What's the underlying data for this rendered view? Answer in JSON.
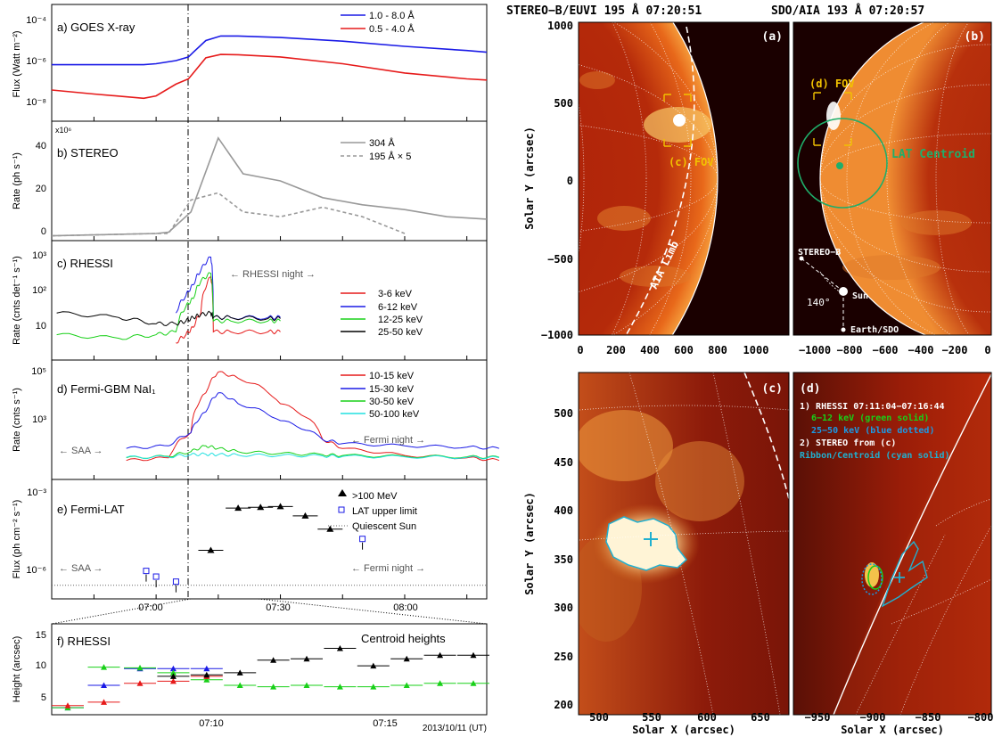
{
  "figure": {
    "footer_date": "2013/10/11 (UT)",
    "time_ticks_main": [
      "07:00",
      "07:30",
      "08:00"
    ],
    "time_ticks_f": [
      "07:10",
      "07:15"
    ]
  },
  "colors": {
    "blue": "#1a1ae6",
    "red": "#e61a1a",
    "green": "#18d018",
    "black": "#000000",
    "cyan": "#20e0e0",
    "gray": "#999999",
    "sun_cyan": "#20b0d0",
    "lat_green": "#1fae6a",
    "fov_yellow": "#f2c200"
  },
  "panels": {
    "a": {
      "label": "a) GOES X-ray",
      "ylabel": "Flux (Watt m⁻²)",
      "yticks": [
        "10⁻⁴",
        "10⁻⁶",
        "10⁻⁸"
      ],
      "legend": [
        "1.0 - 8.0 Å",
        "0.5 - 4.0 Å"
      ]
    },
    "b": {
      "label": "b) STEREO",
      "ylabel": "Rate (ph s⁻¹)",
      "multiplier": "x10⁶",
      "yticks": [
        "40",
        "20",
        "0"
      ],
      "legend": [
        "304 Å",
        "195 Å × 5"
      ]
    },
    "c": {
      "label": "c) RHESSI",
      "ylabel": "Rate (cnts det⁻¹ s⁻¹)",
      "yticks": [
        "10³",
        "10²",
        "10"
      ],
      "night_label": "← RHESSI night →",
      "legend": [
        "3-6 keV",
        "6-12 keV",
        "12-25 keV",
        "25-50 keV"
      ]
    },
    "d": {
      "label": "d) Fermi-GBM NaI₁",
      "ylabel": "Rate (cnts s⁻¹)",
      "yticks": [
        "10⁵",
        "10³"
      ],
      "saa_label": "← SAA →",
      "night_label": "← Fermi night →",
      "legend": [
        "10-15 keV",
        "15-30 keV",
        "30-50 keV",
        "50-100 keV"
      ]
    },
    "e": {
      "label": "e) Fermi-LAT",
      "ylabel": "Flux (ph cm⁻² s⁻¹)",
      "yticks": [
        "10⁻³",
        "10⁻⁶"
      ],
      "saa_label": "← SAA →",
      "night_label": "← Fermi night →",
      "legend": [
        ">100 MeV",
        "LAT upper limit",
        "Quiescent Sun"
      ]
    },
    "f": {
      "label": "f) RHESSI",
      "ylabel": "Height (arcsec)",
      "note": "Centroid heights",
      "yticks": [
        "15",
        "10",
        "5"
      ]
    }
  },
  "images": {
    "stereo_title": "STEREO−B/EUVI 195 Å 07:20:51",
    "aia_title": "SDO/AIA 193 Å 07:20:57",
    "a": {
      "tag": "(a)",
      "fov": "(c) FOV",
      "limb": "AIA Limb",
      "yticks": [
        "1000",
        "500",
        "0",
        "−500",
        "−1000"
      ],
      "xticks": [
        "0",
        "200",
        "400",
        "600",
        "800",
        "1000"
      ]
    },
    "b": {
      "tag": "(b)",
      "fov": "(d) FOV",
      "lat": "LAT Centroid",
      "stereo": "STEREO−B",
      "sun": "Sun",
      "earth": "Earth/SDO",
      "angle": "140°",
      "xticks": [
        "−1000",
        "−800",
        "−600",
        "−400",
        "−200",
        "0"
      ]
    },
    "c": {
      "tag": "(c)",
      "xlabel": "Solar X (arcsec)",
      "yticks": [
        "500",
        "450",
        "400",
        "350",
        "300",
        "250",
        "200"
      ],
      "xticks": [
        "500",
        "550",
        "600",
        "650"
      ]
    },
    "d": {
      "tag": "(d)",
      "xlabel": "Solar X (arcsec)",
      "legend": [
        "1) RHESSI 07:11:04−07:16:44",
        "6−12 keV (green solid)",
        "25−50 keV (blue dotted)",
        "2) STEREO from (c)",
        "Ribbon/Centroid (cyan solid)"
      ],
      "xticks": [
        "−950",
        "−900",
        "−850",
        "−800"
      ]
    },
    "ylabel": "Solar Y (arcsec)"
  },
  "chart_data": [
    {
      "type": "line",
      "title": "a) GOES X-ray",
      "xlabel": "",
      "ylabel": "Flux (Watt m⁻²)",
      "log_y": true,
      "ylim": [
        1e-09,
        0.001
      ],
      "x_hours": [
        6.58,
        6.75,
        6.95,
        7.0,
        7.08,
        7.13,
        7.15,
        7.2,
        7.26,
        7.33,
        7.5,
        7.75,
        8.0,
        8.25,
        8.33
      ],
      "series": [
        {
          "name": "1.0 - 8.0 Å",
          "values": [
            8e-07,
            8e-07,
            8e-07,
            9e-07,
            1.3e-06,
            2e-06,
            3.5e-06,
            1.4e-05,
            2.4e-05,
            2.4e-05,
            2e-05,
            1.3e-05,
            7e-06,
            4.3e-06,
            3.5e-06
          ]
        },
        {
          "name": "0.5 - 4.0 Å",
          "values": [
            4e-08,
            2.5e-08,
            1.5e-08,
            2e-08,
            8e-08,
            1.5e-07,
            3e-07,
            1.8e-06,
            2.7e-06,
            2.6e-06,
            2e-06,
            9e-07,
            3e-07,
            1.5e-07,
            1.3e-07
          ]
        }
      ]
    },
    {
      "type": "line",
      "title": "b) STEREO",
      "xlabel": "",
      "ylabel": "Rate (ph s⁻¹)",
      "ylim": [
        -2,
        48
      ],
      "x_hours": [
        6.58,
        7.0,
        7.05,
        7.14,
        7.25,
        7.35,
        7.5,
        7.67,
        7.83,
        8.0,
        8.17,
        8.33
      ],
      "series": [
        {
          "name": "304 Å",
          "values": [
            0,
            1,
            1.5,
            10,
            41,
            26,
            23,
            16,
            13,
            11,
            8,
            7
          ]
        },
        {
          "name": "195 Å × 5",
          "values": [
            0,
            1,
            1,
            15,
            18,
            10,
            8,
            12,
            8,
            1,
            null,
            null
          ]
        }
      ]
    },
    {
      "type": "line",
      "title": "c) RHESSI",
      "xlabel": "",
      "ylabel": "Rate (cnts det⁻¹ s⁻¹)",
      "log_y": true,
      "ylim": [
        1,
        2000
      ],
      "x_hours": [
        6.6,
        6.85,
        7.0,
        7.08,
        7.12,
        7.15,
        7.18,
        7.22,
        7.23,
        7.3,
        7.45,
        7.5
      ],
      "series": [
        {
          "name": "3-6 keV",
          "values": [
            null,
            null,
            null,
            3,
            5,
            8,
            20,
            200,
            6,
            6,
            6,
            6
          ]
        },
        {
          "name": "6-12 keV",
          "values": [
            null,
            null,
            null,
            20,
            60,
            120,
            300,
            700,
            15,
            15,
            15,
            15
          ]
        },
        {
          "name": "12-25 keV",
          "values": [
            5,
            4,
            5,
            6,
            30,
            50,
            150,
            250,
            12,
            12,
            12,
            12
          ]
        },
        {
          "name": "25-50 keV",
          "values": [
            20,
            15,
            10,
            10,
            12,
            15,
            18,
            20,
            15,
            15,
            14,
            14
          ]
        }
      ]
    },
    {
      "type": "line",
      "title": "d) Fermi-GBM NaI₁",
      "xlabel": "",
      "ylabel": "Rate (cnts s⁻¹)",
      "log_y": true,
      "ylim": [
        100,
        100000
      ],
      "x_hours": [
        6.88,
        7.05,
        7.14,
        7.2,
        7.25,
        7.33,
        7.5,
        7.67,
        7.75,
        8.0,
        8.25,
        8.38
      ],
      "series": [
        {
          "name": "10-15 keV",
          "values": [
            300,
            350,
            1500,
            15000,
            50000,
            35000,
            8000,
            1000,
            600,
            400,
            350,
            300
          ]
        },
        {
          "name": "15-30 keV",
          "values": [
            600,
            700,
            1500,
            5000,
            15000,
            8000,
            3000,
            1000,
            800,
            700,
            650,
            600
          ]
        },
        {
          "name": "30-50 keV",
          "values": [
            350,
            380,
            500,
            700,
            600,
            500,
            450,
            420,
            400,
            380,
            370,
            360
          ]
        },
        {
          "name": "50-100 keV",
          "values": [
            360,
            370,
            420,
            430,
            420,
            410,
            400,
            390,
            380,
            370,
            360,
            350
          ]
        }
      ]
    },
    {
      "type": "scatter",
      "title": "e) Fermi-LAT",
      "xlabel": "",
      "ylabel": "Flux (ph cm⁻² s⁻¹)",
      "log_y": true,
      "ylim": [
        2e-07,
        0.003
      ],
      "series": [
        {
          "name": ">100 MeV",
          "x_hours": [
            7.22,
            7.33,
            7.42,
            7.5,
            7.6,
            7.7,
            7.8
          ],
          "values": [
            1e-05,
            0.0003,
            0.00032,
            0.00034,
            0.00016,
            5.5e-05,
            null
          ]
        },
        {
          "name": "LAT upper limit",
          "x_hours": [
            6.96,
            7.0,
            7.08,
            7.83
          ],
          "values": [
            1.9e-06,
            1.2e-06,
            8e-07,
            2.5e-05
          ]
        },
        {
          "name": "Quiescent Sun",
          "values": [
            6e-07
          ]
        }
      ],
      "upper_limit_x": [
        6.96,
        7.0,
        7.08,
        7.83
      ],
      "upper_limit_values": [
        1.9e-06,
        1.2e-06,
        8e-07,
        2.5e-05
      ],
      "detection_x": [
        7.22,
        7.33,
        7.42,
        7.5,
        7.6,
        7.7
      ],
      "detection_values": [
        1e-05,
        0.0003,
        0.00032,
        0.00034,
        0.00016,
        5.5e-05
      ]
    },
    {
      "type": "scatter",
      "title": "f) RHESSI",
      "xlabel": "2013/10/11 (UT)",
      "ylabel": "Height (arcsec)",
      "ylim": [
        3,
        16
      ],
      "x_minutes": [
        5.2,
        6.5,
        7.8,
        9.0,
        10.2,
        11.4,
        12.6,
        13.8,
        15.0,
        16.2,
        17.4,
        18.6,
        19.8
      ],
      "series": [
        {
          "name": "6-12 keV",
          "color": "blue",
          "values": [
            4,
            7.2,
            9.6,
            9.6,
            9.6,
            null,
            null,
            null,
            null,
            null,
            null,
            null,
            null
          ]
        },
        {
          "name": "12-25 keV",
          "color": "green",
          "values": [
            4,
            9.8,
            9.7,
            9,
            8,
            7.2,
            7,
            7.2,
            7,
            7,
            7.2,
            7.5,
            7.5
          ]
        },
        {
          "name": "3-6 keV",
          "color": "red",
          "values": [
            4.3,
            4.8,
            7.5,
            7.8,
            8.5,
            null,
            null,
            null,
            null,
            null,
            null,
            null,
            null
          ]
        },
        {
          "name": "25-50 keV",
          "color": "black",
          "values": [
            null,
            null,
            null,
            8.5,
            8.7,
            9,
            10.8,
            11,
            12.5,
            10,
            11,
            11.5,
            11.5
          ]
        }
      ]
    }
  ]
}
